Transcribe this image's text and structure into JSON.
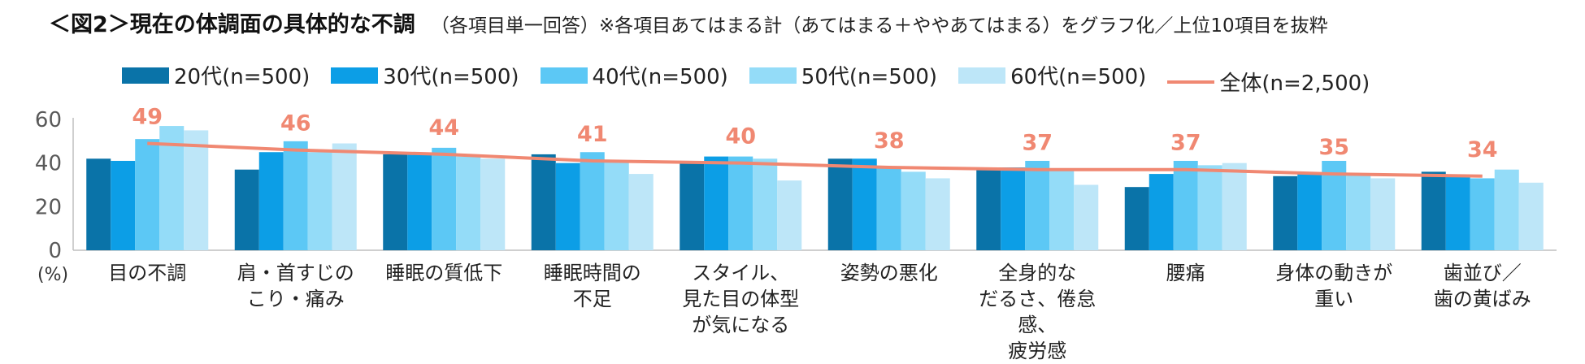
{
  "title": "＜図2＞現在の体調面の具体的な不調",
  "subtitle": "（各項目単一回答）※各項目あてはまる計（あてはまる＋ややあてはまる）をグラフ化／上位10項目を抜粋",
  "unit_label": "(%)",
  "chart_data": {
    "type": "bar",
    "title": "＜図2＞現在の体調面の具体的な不調",
    "subtitle": "（各項目単一回答）※各項目あてはまる計（あてはまる＋ややあてはまる）をグラフ化／上位10項目を抜粋",
    "ylabel": "(%)",
    "ylim": [
      0,
      60
    ],
    "yticks": [
      0,
      20,
      40,
      60
    ],
    "grid": false,
    "legend_position": "top",
    "categories": [
      [
        "目の不調"
      ],
      [
        "肩・首すじの",
        "こり・痛み"
      ],
      [
        "睡眠の質低下"
      ],
      [
        "睡眠時間の",
        "不足"
      ],
      [
        "スタイル、",
        "見た目の体型",
        "が気になる"
      ],
      [
        "姿勢の悪化"
      ],
      [
        "全身的な",
        "だるさ、倦怠感、",
        "疲労感"
      ],
      [
        "腰痛"
      ],
      [
        "身体の動きが",
        "重い"
      ],
      [
        "歯並び／",
        "歯の黄ばみ"
      ]
    ],
    "series": [
      {
        "name": "20代(n=500)",
        "color": "#0a73a8",
        "values": [
          42,
          37,
          44,
          44,
          40,
          42,
          38,
          29,
          34,
          36
        ]
      },
      {
        "name": "30代(n=500)",
        "color": "#0c9ee6",
        "values": [
          41,
          45,
          44,
          40,
          43,
          42,
          38,
          35,
          35,
          34
        ]
      },
      {
        "name": "40代(n=500)",
        "color": "#5cc8f5",
        "values": [
          51,
          50,
          47,
          45,
          43,
          38,
          41,
          41,
          41,
          33
        ]
      },
      {
        "name": "50代(n=500)",
        "color": "#94dcf8",
        "values": [
          57,
          45,
          43,
          41,
          42,
          36,
          37,
          39,
          35,
          37
        ]
      },
      {
        "name": "60代(n=500)",
        "color": "#bde6f8",
        "values": [
          55,
          49,
          42,
          35,
          32,
          33,
          30,
          40,
          33,
          31
        ]
      }
    ],
    "total_line": {
      "name": "全体(n=2,500)",
      "color": "#f08872",
      "values": [
        49,
        46,
        44,
        41,
        40,
        38,
        37,
        37,
        35,
        34
      ],
      "labels": [
        "49",
        "46",
        "44",
        "41",
        "40",
        "38",
        "37",
        "37",
        "35",
        "34"
      ]
    }
  }
}
